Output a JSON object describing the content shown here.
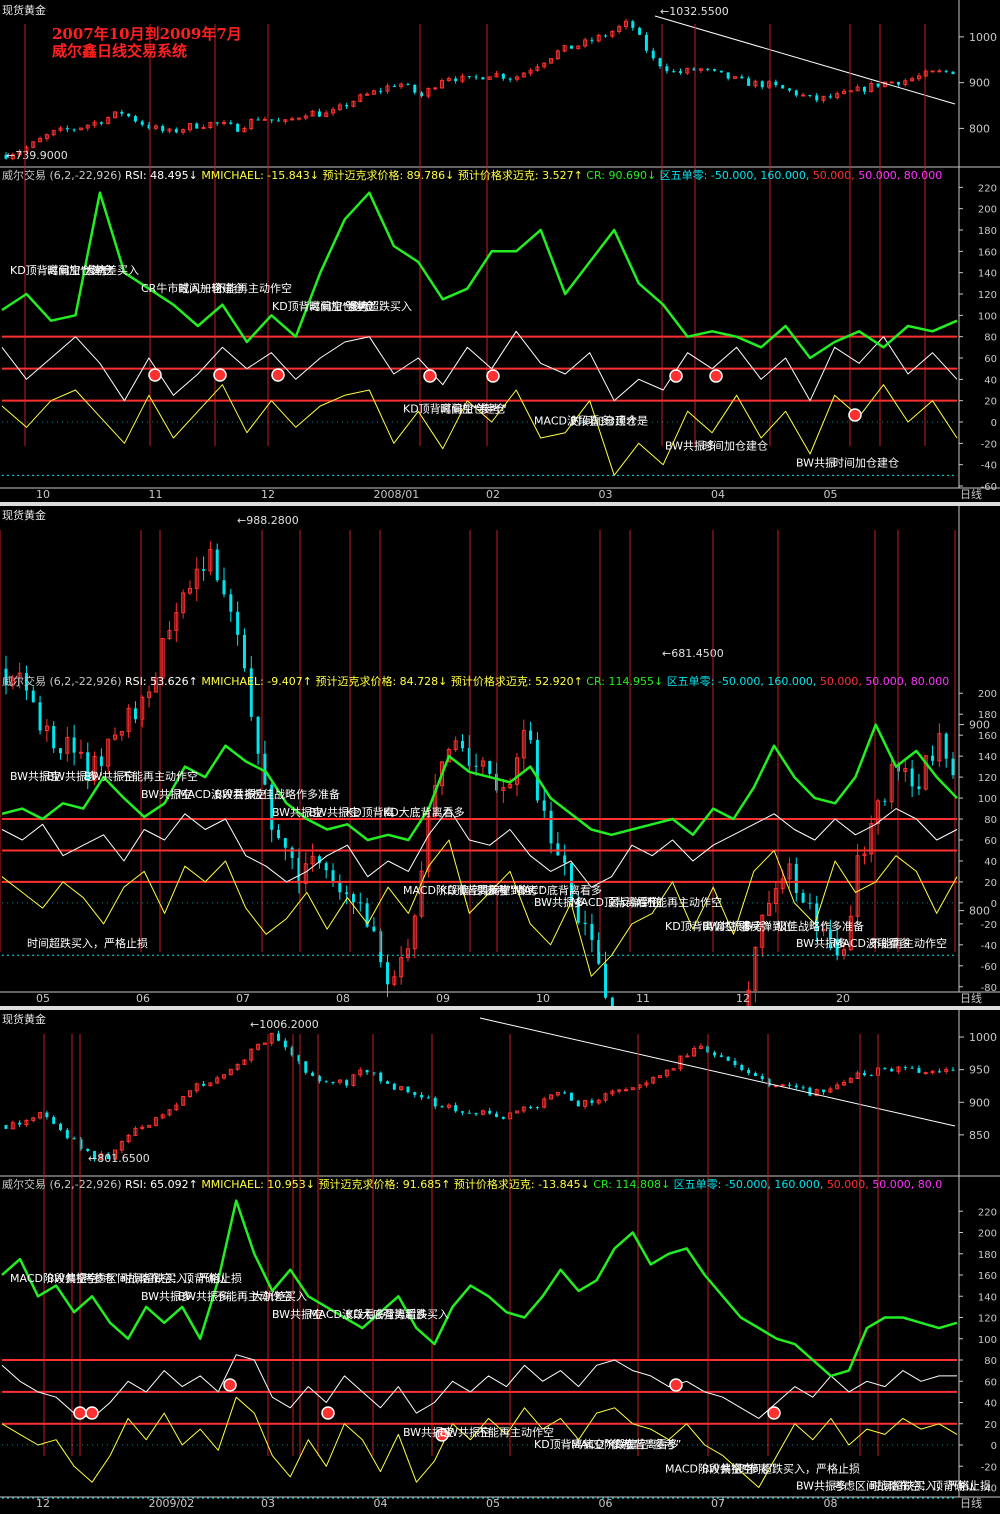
{
  "colors": {
    "up": "#ff3030",
    "down": "#00e5ee",
    "rsi": "#ffffff",
    "mm": "#ffff40",
    "cr": "#22ee22",
    "level": "#ff3030",
    "axis": "#c8c8c8",
    "hot": "#ff33ff"
  },
  "title": {
    "line1": "2007年10月到2009年7月",
    "line2": "威尔鑫日线交易系统"
  },
  "panels": [
    {
      "price_title": "现货黄金",
      "high_label": "1032.5500",
      "low_label": "739.9000",
      "indicator_parts": [
        {
          "text": "威尔交易 (6,2,-22,926)",
          "color": "#c8c8c8"
        },
        {
          "text": "RSI: 48.495↓",
          "color": "#ffffff"
        },
        {
          "text": "MMICHAEL: -15.843↓",
          "color": "#ffff40"
        },
        {
          "text": "预计迈克求价格: 89.786↓",
          "color": "#ffff40"
        },
        {
          "text": "预计价格求迈克: 3.527↑",
          "color": "#ffff40"
        },
        {
          "text": "CR: 90.690↓",
          "color": "#22ee22"
        },
        {
          "text": "区五单零: -50.000, 160.000,",
          "color": "#00e5ee"
        },
        {
          "text": "50.000,",
          "color": "#ff3030"
        },
        {
          "text": "50.000, 80.000",
          "color": "#ff33ff"
        }
      ],
      "x_labels": [
        "10",
        "11",
        "12",
        "2008/01",
        "02",
        "03",
        "04",
        "05",
        "日线"
      ],
      "annotations": [
        "KD顶背离偏空“参考”",
        "CR牛市或入一轮",
        "KD顶背离偏空“参考”",
        "KD顶背离偏空“参考”",
        "MACD波段看多",
        "BW共振多",
        "BW共振",
        "时间加仓建仓",
        "时间加仓建仓",
        "时间加仓建仓",
        "时间加仓建仓",
        "时间加仓建仓",
        "时间加仓建仓",
        "时间加仓建仓",
        "大轨差买入",
        "不能再主动作空",
        "强势超跌买入",
        "牛",
        "3顶才是"
      ]
    },
    {
      "price_title": "现货黄金",
      "high_label": "988.2800",
      "low_label": "681.4500",
      "indicator_parts": [
        {
          "text": "威尔交易 (6,2,-22,926)",
          "color": "#c8c8c8"
        },
        {
          "text": "RSI: 53.626↑",
          "color": "#ffffff"
        },
        {
          "text": "MMICHAEL: -9.407↑",
          "color": "#ffff40"
        },
        {
          "text": "预计迈克求价格: 84.728↓",
          "color": "#ffff40"
        },
        {
          "text": "预计价格求迈克: 52.920↑",
          "color": "#ffff40"
        },
        {
          "text": "CR: 114.955↓",
          "color": "#22ee22"
        },
        {
          "text": "区五单零: -50.000, 160.000,",
          "color": "#00e5ee"
        },
        {
          "text": "50.000,",
          "color": "#ff3030"
        },
        {
          "text": "50.000, 80.000",
          "color": "#ff33ff"
        }
      ],
      "x_labels": [
        "05",
        "06",
        "07",
        "08",
        "09",
        "10",
        "11",
        "12",
        "20",
        "日线"
      ],
      "annotations": [
        "BW共振空",
        "BW共振空",
        "BW共振空",
        "MACD阶段偏空“参考”",
        "BW共振多",
        "KD顶背离偏空“参考”",
        "BW共振多",
        "BW共振多",
        "MACD波段看多",
        "BW共振空",
        "KD顶背离偏空“参考”",
        "MACD顶背离看空",
        "BW共振多",
        "MACD波段看多",
        "BW共振空",
        "BW共振空",
        "KD顶背离",
        "弱反弹到位",
        "弱反弹到位",
        "弱反弹到位",
        "不能再主动作空",
        "不能再主动作空",
        "极佳战略作多准备",
        "KD大底背离看多",
        "MACD底背离看多",
        "不能再主动作空",
        "极佳战略作多准备",
        "时间超跌买入，严格止损"
      ]
    },
    {
      "price_title": "现货黄金",
      "high_label": "1006.2000",
      "low_label": "801.6500",
      "indicator_parts": [
        {
          "text": "威尔交易 (6,2,-22,926)",
          "color": "#c8c8c8"
        },
        {
          "text": "RSI: 65.092↑",
          "color": "#ffffff"
        },
        {
          "text": "MMICHAEL: 10.953↓",
          "color": "#ffff40"
        },
        {
          "text": "预计迈克求价格: 91.685↑",
          "color": "#ffff40"
        },
        {
          "text": "预计价格求迈克: -13.845↓",
          "color": "#ffff40"
        },
        {
          "text": "CR: 114.808↓",
          "color": "#22ee22"
        },
        {
          "text": "区五单零: -50.000, 160.000,",
          "color": "#00e5ee"
        },
        {
          "text": "50.000,",
          "color": "#ff3030"
        },
        {
          "text": "50.000, 80.0",
          "color": "#ff33ff"
        }
      ],
      "x_labels": [
        "12",
        "2009/02",
        "03",
        "04",
        "05",
        "06",
        "07",
        "08",
        "日线"
      ],
      "annotations": [
        "MACD阶段偏空“参考”",
        "BW共振多",
        "BW共振空",
        "BW共振空",
        "KD顶背离偏空“参考”",
        "MACD阶段偏空“参考”",
        "BW共振多",
        "BW共振空",
        "BW共振多",
        "MACD波段看多",
        "BW共振空",
        "MACD阶段偏空“参考”",
        "BW共振空",
        "考虑区间战略布空：顶背确认",
        "考虑区间战略布空：顶背确认",
        "不能再主动作空",
        "KD大底背离看多",
        "不能再主动作空",
        "KD底背离看多",
        "时间超跌买入，严格止损",
        "时间超跌买入，严格止损",
        "时间超跌买入，严格止损",
        "大轨差买入",
        "强势超跌买入"
      ]
    }
  ],
  "chart_data": [
    {
      "type": "candlestick+line",
      "title": "2007年10月到2009年7月 威尔鑫日线交易系统",
      "price": {
        "ylim": [
          720,
          1050
        ],
        "ticks": [
          800,
          900,
          1000
        ],
        "max": 1032.55,
        "min": 739.9,
        "x_labels": [
          "10",
          "11",
          "12",
          "2008/01",
          "02",
          "03",
          "04",
          "05"
        ],
        "close_path": [
          742,
          760,
          790,
          800,
          815,
          835,
          808,
          790,
          805,
          812,
          800,
          825,
          810,
          835,
          830,
          860,
          880,
          900,
          870,
          915,
          905,
          920,
          910,
          940,
          970,
          985,
          1005,
          1032,
          950,
          920,
          930,
          915,
          900,
          895,
          880,
          862,
          870,
          885,
          900,
          905,
          920,
          925
        ]
      },
      "indicator": {
        "ylim": [
          -60,
          225
        ],
        "ticks": [
          -60,
          -40,
          -20,
          0,
          20,
          40,
          60,
          80,
          100,
          120,
          140,
          160,
          180,
          200,
          220
        ],
        "levels": [
          80,
          50,
          20
        ],
        "CR": [
          105,
          120,
          95,
          100,
          215,
          140,
          125,
          110,
          90,
          110,
          75,
          100,
          80,
          140,
          190,
          215,
          165,
          150,
          115,
          125,
          160,
          160,
          180,
          120,
          150,
          180,
          130,
          110,
          80,
          85,
          80,
          70,
          90,
          60,
          75,
          85,
          70,
          90,
          85,
          95
        ],
        "RSI": [
          70,
          40,
          60,
          80,
          55,
          20,
          60,
          25,
          45,
          70,
          50,
          65,
          40,
          60,
          75,
          80,
          45,
          60,
          35,
          70,
          50,
          85,
          55,
          45,
          65,
          20,
          40,
          30,
          65,
          50,
          70,
          40,
          60,
          20,
          70,
          55,
          80,
          45,
          65,
          40
        ],
        "MMICHAEL": [
          15,
          -5,
          20,
          30,
          5,
          -20,
          25,
          -15,
          10,
          35,
          -10,
          20,
          -5,
          15,
          25,
          30,
          -20,
          10,
          -25,
          20,
          0,
          30,
          -15,
          -10,
          20,
          -50,
          -20,
          -40,
          10,
          -10,
          25,
          -15,
          10,
          -30,
          25,
          5,
          35,
          0,
          20,
          -15
        ]
      },
      "values_estimated": true
    },
    {
      "type": "candlestick+line",
      "price": {
        "ylim": [
          660,
          1010
        ],
        "ticks": [
          700,
          800,
          900
        ],
        "max": 988.28,
        "min": 681.45,
        "x_labels": [
          "05",
          "06",
          "07",
          "08",
          "09",
          "10",
          "11",
          "12",
          "20"
        ],
        "close_path": [
          930,
          920,
          900,
          890,
          880,
          875,
          900,
          910,
          930,
          955,
          970,
          988,
          960,
          920,
          860,
          830,
          820,
          830,
          810,
          800,
          780,
          760,
          800,
          860,
          890,
          880,
          870,
          860,
          900,
          845,
          820,
          790,
          770,
          740,
          720,
          690,
          700,
          725,
          730,
          740,
          760,
          800,
          820,
          810,
          790,
          780,
          830,
          860,
          880,
          870,
          890,
          880
        ]
      },
      "indicator": {
        "ylim": [
          -85,
          205
        ],
        "ticks": [
          -80,
          -60,
          -40,
          -20,
          0,
          20,
          40,
          60,
          80,
          100,
          120,
          140,
          160,
          180,
          200
        ],
        "levels": [
          80,
          50,
          20
        ],
        "CR": [
          85,
          90,
          80,
          95,
          90,
          120,
          100,
          82,
          95,
          130,
          120,
          150,
          135,
          125,
          95,
          80,
          70,
          75,
          60,
          65,
          60,
          90,
          140,
          125,
          120,
          115,
          130,
          100,
          85,
          70,
          65,
          70,
          75,
          80,
          65,
          90,
          80,
          110,
          150,
          120,
          100,
          95,
          120,
          170,
          130,
          145,
          120,
          100
        ],
        "RSI": [
          70,
          60,
          75,
          45,
          55,
          65,
          40,
          70,
          60,
          85,
          70,
          80,
          45,
          35,
          20,
          30,
          45,
          55,
          25,
          40,
          30,
          65,
          90,
          60,
          55,
          70,
          45,
          30,
          40,
          15,
          25,
          55,
          45,
          60,
          40,
          55,
          65,
          75,
          85,
          70,
          60,
          80,
          65,
          75,
          90,
          80,
          60,
          70
        ],
        "MMICHAEL": [
          25,
          10,
          -5,
          20,
          5,
          -20,
          15,
          30,
          -10,
          35,
          20,
          40,
          -5,
          -30,
          -15,
          10,
          -25,
          5,
          -20,
          15,
          -10,
          35,
          60,
          -10,
          10,
          30,
          -20,
          -40,
          0,
          -70,
          -50,
          -20,
          -10,
          20,
          -25,
          15,
          -30,
          30,
          50,
          0,
          -20,
          40,
          10,
          20,
          45,
          30,
          -10,
          25
        ]
      },
      "values_estimated": true
    },
    {
      "type": "candlestick+line",
      "price": {
        "ylim": [
          790,
          1020
        ],
        "ticks": [
          850,
          900,
          950,
          1000
        ],
        "max": 1006.2,
        "min": 801.65,
        "x_labels": [
          "12",
          "2009/02",
          "03",
          "04",
          "05",
          "06",
          "07",
          "08"
        ],
        "close_path": [
          865,
          870,
          885,
          860,
          835,
          815,
          820,
          850,
          870,
          890,
          910,
          930,
          940,
          955,
          985,
          1006,
          970,
          940,
          925,
          930,
          950,
          935,
          920,
          915,
          895,
          890,
          880,
          885,
          875,
          890,
          900,
          915,
          895,
          905,
          915,
          920,
          935,
          945,
          975,
          985,
          970,
          955,
          935,
          925,
          930,
          915,
          920,
          935,
          945,
          950,
          955,
          945,
          950,
          955
        ]
      },
      "indicator": {
        "ylim": [
          -48,
          240
        ],
        "ticks": [
          -40,
          -20,
          0,
          20,
          40,
          60,
          80,
          100,
          120,
          140,
          160,
          180,
          200,
          220
        ],
        "levels": [
          80,
          50,
          20
        ],
        "CR": [
          160,
          175,
          140,
          150,
          125,
          140,
          115,
          100,
          130,
          115,
          130,
          100,
          155,
          230,
          180,
          145,
          165,
          140,
          130,
          120,
          110,
          125,
          140,
          110,
          95,
          130,
          150,
          140,
          125,
          120,
          140,
          165,
          145,
          155,
          185,
          200,
          170,
          180,
          185,
          160,
          140,
          120,
          110,
          100,
          95,
          80,
          65,
          70,
          110,
          120,
          120,
          115,
          110,
          115
        ],
        "RSI": [
          75,
          60,
          50,
          45,
          30,
          25,
          40,
          60,
          50,
          70,
          55,
          65,
          50,
          85,
          80,
          45,
          35,
          55,
          40,
          65,
          50,
          35,
          55,
          30,
          40,
          60,
          50,
          65,
          55,
          75,
          60,
          70,
          55,
          75,
          80,
          70,
          65,
          55,
          60,
          50,
          45,
          35,
          25,
          40,
          55,
          45,
          65,
          50,
          60,
          55,
          70,
          60,
          65,
          65
        ],
        "MMICHAEL": [
          20,
          10,
          0,
          5,
          -20,
          -35,
          -10,
          25,
          5,
          30,
          0,
          15,
          -5,
          45,
          30,
          -10,
          -30,
          5,
          -20,
          20,
          5,
          -25,
          10,
          -35,
          -15,
          20,
          5,
          25,
          10,
          35,
          15,
          25,
          5,
          30,
          35,
          20,
          15,
          5,
          20,
          0,
          -10,
          -25,
          -40,
          -10,
          20,
          5,
          25,
          0,
          15,
          10,
          25,
          15,
          20,
          10
        ]
      },
      "values_estimated": true
    }
  ]
}
